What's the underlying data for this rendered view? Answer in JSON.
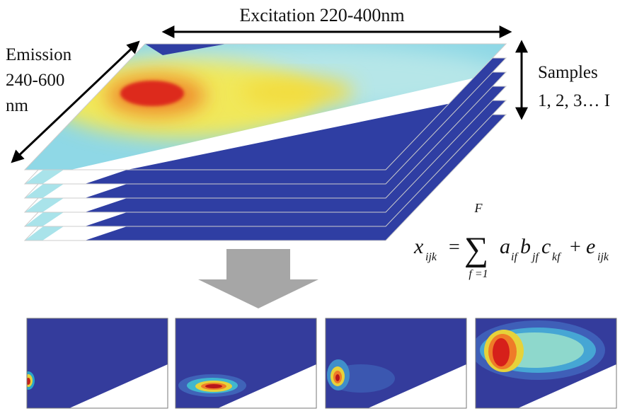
{
  "labels": {
    "excitation": "Excitation 220-400nm",
    "emission": [
      "Emission",
      "240-600",
      "nm"
    ],
    "samples": [
      "Samples",
      "1, 2, 3… I"
    ]
  },
  "equation": {
    "x": "x",
    "x_sub": "ijk",
    "equals": "=",
    "sum": "∑",
    "upper": "F",
    "lower": "f =1",
    "a": "a",
    "a_sub": "if",
    "b": "b",
    "b_sub": "jf",
    "c": "c",
    "c_sub": "kf",
    "plus": "+",
    "e": "e",
    "e_sub": "ijk"
  }
}
